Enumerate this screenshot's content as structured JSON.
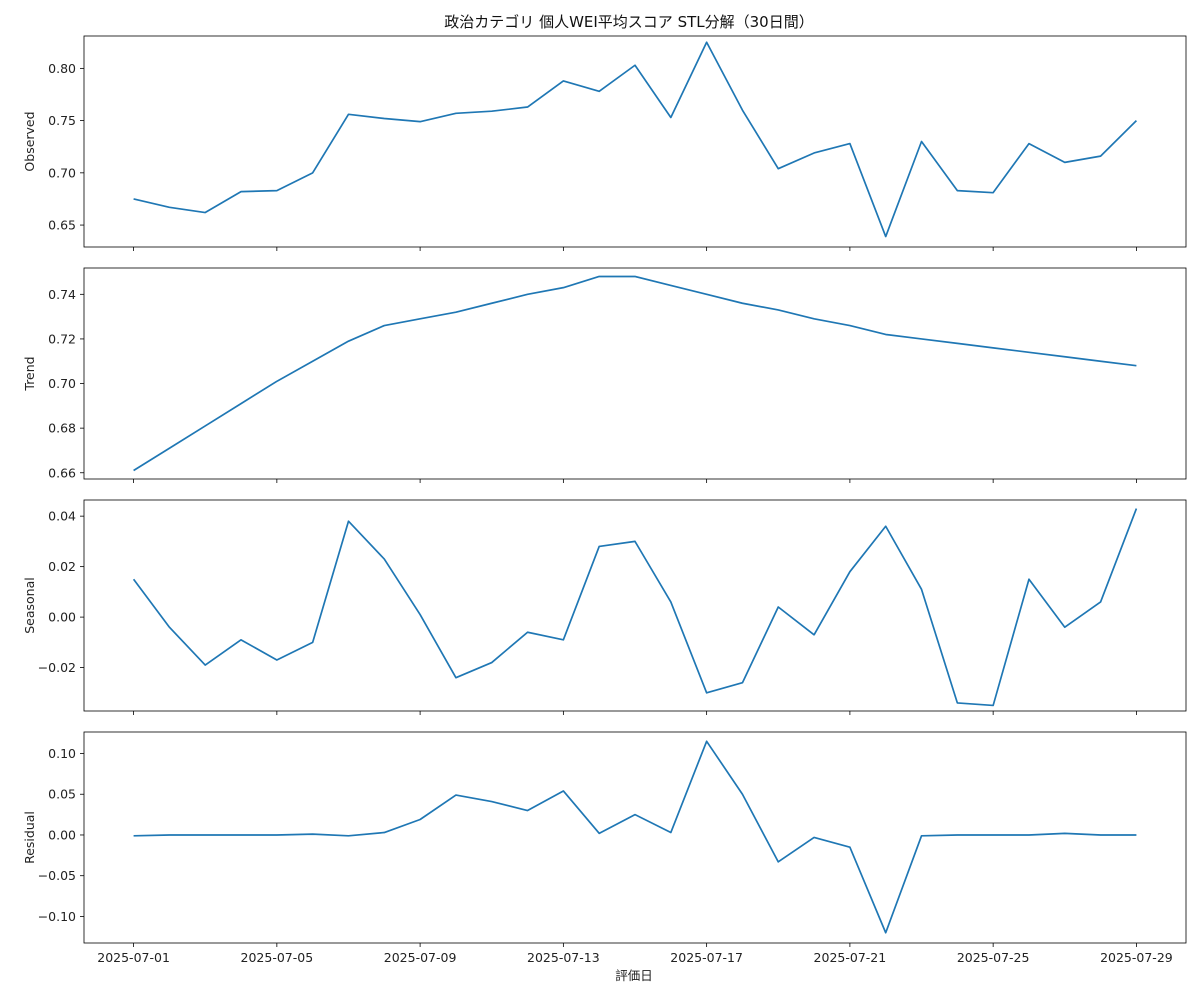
{
  "chart_data": {
    "type": "line",
    "title": "政治カテゴリ 個人WEI平均スコア STL分解（30日間）",
    "xlabel": "評価日",
    "x": [
      "2025-07-01",
      "2025-07-02",
      "2025-07-03",
      "2025-07-04",
      "2025-07-05",
      "2025-07-06",
      "2025-07-07",
      "2025-07-08",
      "2025-07-09",
      "2025-07-10",
      "2025-07-11",
      "2025-07-12",
      "2025-07-13",
      "2025-07-14",
      "2025-07-15",
      "2025-07-16",
      "2025-07-17",
      "2025-07-18",
      "2025-07-19",
      "2025-07-20",
      "2025-07-21",
      "2025-07-22",
      "2025-07-23",
      "2025-07-24",
      "2025-07-25",
      "2025-07-26",
      "2025-07-27",
      "2025-07-28",
      "2025-07-29"
    ],
    "x_ticks": [
      "2025-07-01",
      "2025-07-05",
      "2025-07-09",
      "2025-07-13",
      "2025-07-17",
      "2025-07-21",
      "2025-07-25",
      "2025-07-29"
    ],
    "line_color": "#1f77b4",
    "grid": false,
    "panels": [
      {
        "ylabel": "Observed",
        "ylim": [
          0.629,
          0.831
        ],
        "yticks": [
          0.65,
          0.7,
          0.75,
          0.8
        ],
        "ytick_labels": [
          "0.65",
          "0.70",
          "0.75",
          "0.80"
        ],
        "values": [
          0.675,
          0.667,
          0.662,
          0.682,
          0.683,
          0.7,
          0.756,
          0.752,
          0.749,
          0.757,
          0.759,
          0.763,
          0.788,
          0.778,
          0.803,
          0.753,
          0.825,
          0.76,
          0.704,
          0.719,
          0.728,
          0.639,
          0.73,
          0.683,
          0.681,
          0.728,
          0.71,
          0.716,
          0.75
        ]
      },
      {
        "ylabel": "Trend",
        "ylim": [
          0.6572,
          0.7518
        ],
        "yticks": [
          0.66,
          0.68,
          0.7,
          0.72,
          0.74
        ],
        "ytick_labels": [
          "0.66",
          "0.68",
          "0.70",
          "0.72",
          "0.74"
        ],
        "values": [
          0.661,
          0.671,
          0.681,
          0.691,
          0.701,
          0.71,
          0.719,
          0.726,
          0.729,
          0.732,
          0.736,
          0.74,
          0.743,
          0.748,
          0.748,
          0.744,
          0.74,
          0.736,
          0.733,
          0.729,
          0.726,
          0.722,
          0.72,
          0.718,
          0.716,
          0.714,
          0.712,
          0.71,
          0.708
        ]
      },
      {
        "ylabel": "Seasonal",
        "ylim": [
          -0.0372,
          0.0464
        ],
        "yticks": [
          -0.02,
          0.0,
          0.02,
          0.04
        ],
        "ytick_labels": [
          "−0.02",
          "0.00",
          "0.02",
          "0.04"
        ],
        "values": [
          0.015,
          -0.004,
          -0.019,
          -0.009,
          -0.017,
          -0.01,
          0.038,
          0.023,
          0.001,
          -0.024,
          -0.018,
          -0.006,
          -0.009,
          0.028,
          0.03,
          0.006,
          -0.03,
          -0.026,
          0.004,
          -0.007,
          0.018,
          0.036,
          0.011,
          -0.034,
          -0.035,
          0.015,
          -0.004,
          0.006,
          0.043
        ]
      },
      {
        "ylabel": "Residual",
        "ylim": [
          -0.1326,
          0.1264
        ],
        "yticks": [
          -0.1,
          -0.05,
          0.0,
          0.05,
          0.1
        ],
        "ytick_labels": [
          "−0.10",
          "−0.05",
          "0.00",
          "0.05",
          "0.10"
        ],
        "values": [
          -0.001,
          0.0,
          0.0,
          0.0,
          0.0,
          0.001,
          -0.001,
          0.003,
          0.019,
          0.049,
          0.041,
          0.03,
          0.054,
          0.002,
          0.025,
          0.003,
          0.115,
          0.05,
          -0.033,
          -0.003,
          -0.015,
          -0.12,
          -0.001,
          0.0,
          0.0,
          0.0,
          0.002,
          0.0,
          0.0
        ]
      }
    ]
  }
}
